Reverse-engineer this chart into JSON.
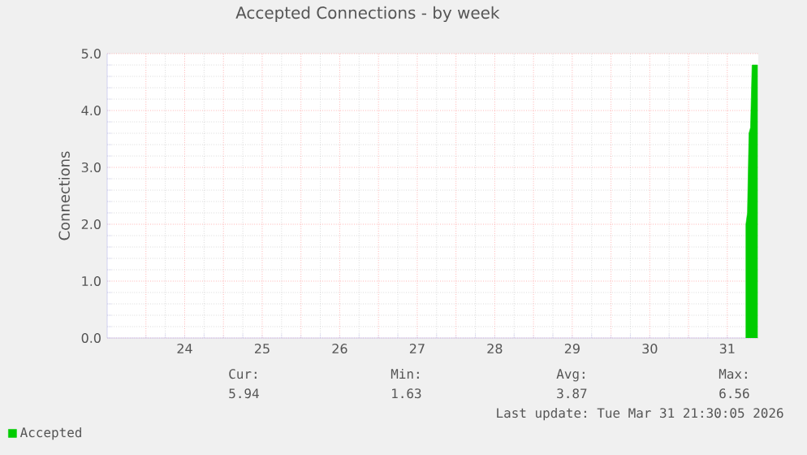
{
  "chart_data": {
    "type": "area",
    "title": "Accepted Connections - by week",
    "ylabel": "Connections",
    "x": [
      31.74,
      31.76,
      31.78,
      31.8,
      31.82,
      31.86,
      31.89
    ],
    "series": [
      {
        "name": "Accepted",
        "color": "#00cc00",
        "values": [
          2.0,
          2.2,
          3.6,
          3.7,
          4.8,
          4.8,
          4.8
        ]
      }
    ],
    "xlim": [
      23.5,
      31.9
    ],
    "xticks": [
      {
        "value": 24,
        "label": null
      },
      {
        "value": 24.5,
        "label": "24"
      },
      {
        "value": 25,
        "label": null
      },
      {
        "value": 25.5,
        "label": "25"
      },
      {
        "value": 26,
        "label": null
      },
      {
        "value": 26.5,
        "label": "26"
      },
      {
        "value": 27,
        "label": null
      },
      {
        "value": 27.5,
        "label": "27"
      },
      {
        "value": 28,
        "label": null
      },
      {
        "value": 28.5,
        "label": "28"
      },
      {
        "value": 29,
        "label": null
      },
      {
        "value": 29.5,
        "label": "29"
      },
      {
        "value": 30,
        "label": null
      },
      {
        "value": 30.5,
        "label": "30"
      },
      {
        "value": 31,
        "label": null
      },
      {
        "value": 31.5,
        "label": "31"
      }
    ],
    "ylim": [
      0,
      5.0
    ],
    "yticks": [
      {
        "value": 0,
        "label": "0.0"
      },
      {
        "value": 1,
        "label": "1.0"
      },
      {
        "value": 2,
        "label": "2.0"
      },
      {
        "value": 3,
        "label": "3.0"
      },
      {
        "value": 4,
        "label": "4.0"
      },
      {
        "value": 5,
        "label": "5.0"
      }
    ],
    "grid": true,
    "legend": "bottom left",
    "annotations": [
      "Cur:",
      "Min:",
      "Avg:",
      "Max:",
      "5.94",
      "1.63",
      "3.87",
      "6.56",
      "Last update: Tue Mar 31 21:30:05 2026"
    ]
  }
}
